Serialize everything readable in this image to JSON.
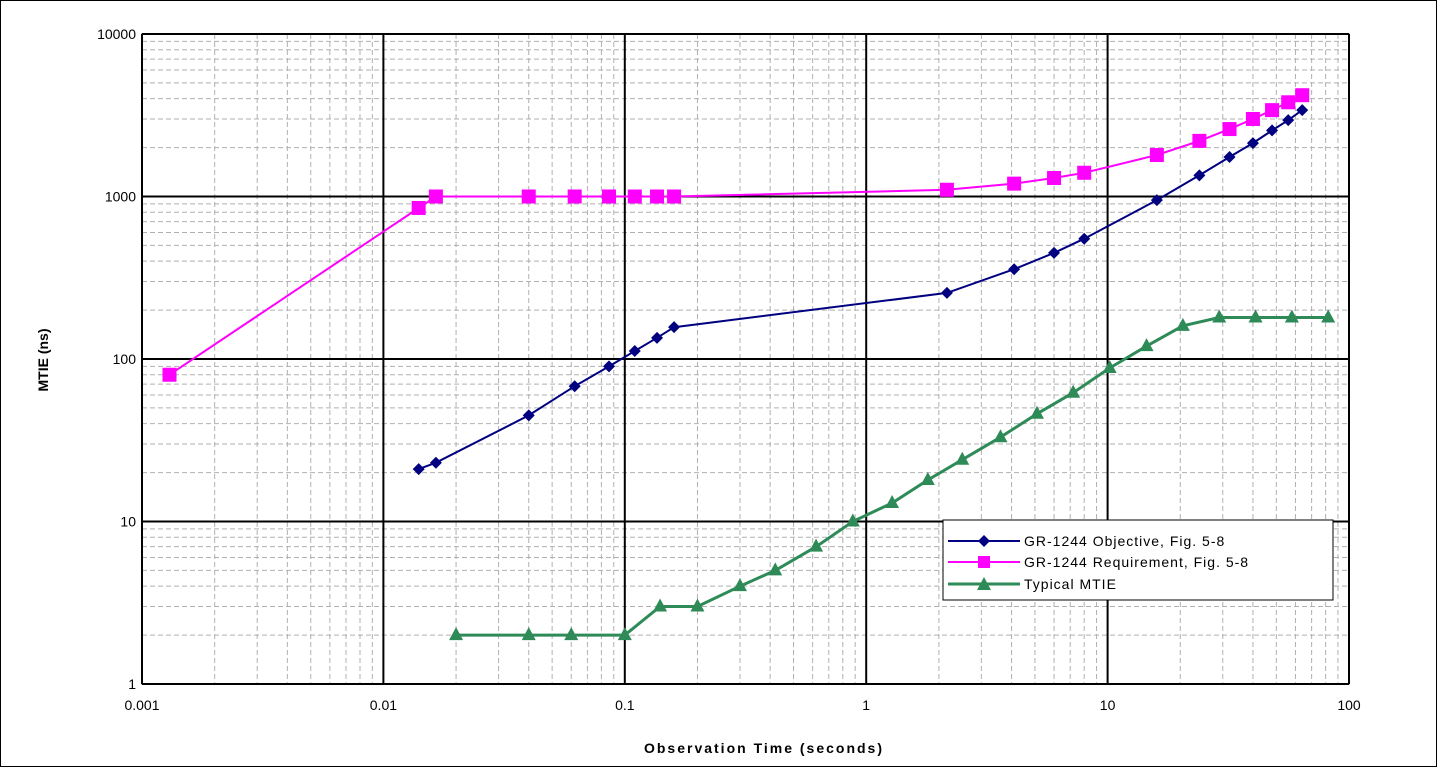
{
  "chart_data": {
    "type": "line",
    "title": "",
    "xlabel": "Observation Time (seconds)",
    "ylabel": "MTIE (ns)",
    "x_scale": "log",
    "y_scale": "log",
    "xlim": [
      0.001,
      100
    ],
    "ylim": [
      1,
      10000
    ],
    "grid": true,
    "legend_position": "bottom-right",
    "x_tick_labels": [
      "0.001",
      "0.01",
      "0.1",
      "1",
      "10",
      "100"
    ],
    "y_tick_labels": [
      "1",
      "10",
      "100",
      "1000",
      "10000"
    ],
    "series": [
      {
        "name": "GR-1244 Objective, Fig. 5-8",
        "color": "#000080",
        "marker": "diamond",
        "x": [
          0.014,
          0.0165,
          0.04,
          0.062,
          0.086,
          0.11,
          0.136,
          0.16,
          2.16,
          4.1,
          6.0,
          8.0,
          16.0,
          24.0,
          32.0,
          40.0,
          48.0,
          56.0,
          64.0
        ],
        "y": [
          21,
          23,
          45,
          68,
          90,
          112,
          135,
          157,
          255,
          357,
          450,
          550,
          950,
          1350,
          1750,
          2130,
          2550,
          2950,
          3400
        ]
      },
      {
        "name": "GR-1244 Requirement, Fig. 5-8",
        "color": "#ff00ff",
        "marker": "square",
        "x": [
          0.0013,
          0.014,
          0.0165,
          0.04,
          0.062,
          0.086,
          0.11,
          0.136,
          0.16,
          2.16,
          4.1,
          6.0,
          8.0,
          16.0,
          24.0,
          32.0,
          40.0,
          48.0,
          56.0,
          64.0
        ],
        "y": [
          80,
          850,
          1000,
          1000,
          1000,
          1000,
          1000,
          1000,
          1000,
          1100,
          1200,
          1300,
          1400,
          1800,
          2200,
          2600,
          3000,
          3400,
          3800,
          4200
        ]
      },
      {
        "name": "Typical MTIE",
        "color": "#2e8b57",
        "marker": "triangle",
        "x": [
          0.02,
          0.04,
          0.06,
          0.1,
          0.14,
          0.2,
          0.3,
          0.42,
          0.62,
          0.88,
          1.28,
          1.8,
          2.5,
          3.6,
          5.1,
          7.2,
          10.2,
          14.5,
          20.5,
          29.0,
          41.0,
          58.0,
          82.0
        ],
        "y": [
          2,
          2,
          2,
          2,
          3,
          3,
          4,
          5,
          7,
          10,
          13,
          18,
          24,
          33,
          46,
          62,
          88,
          120,
          160,
          180,
          180,
          180,
          180
        ]
      }
    ]
  }
}
